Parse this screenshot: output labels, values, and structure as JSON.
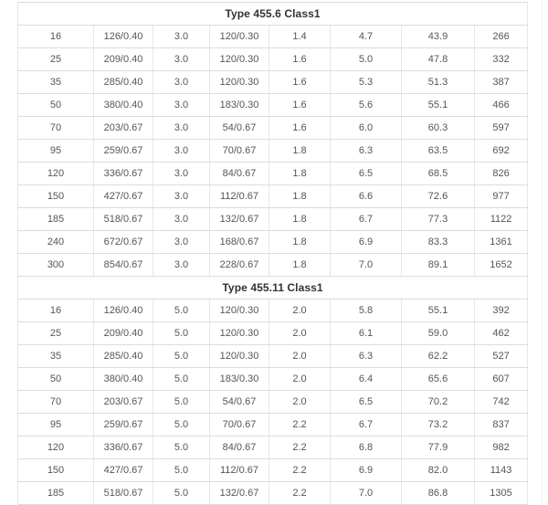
{
  "colors": {
    "background": "#ffffff",
    "border_horizontal": "#dcdcdc",
    "border_vertical": "#e6e6e6",
    "cell_text": "#555555",
    "section_title_text": "#333333"
  },
  "table": {
    "columns": 8,
    "sections": [
      {
        "title": "Type 455.6 Class1",
        "rows": [
          [
            "16",
            "126/0.40",
            "3.0",
            "120/0.30",
            "1.4",
            "4.7",
            "43.9",
            "266"
          ],
          [
            "25",
            "209/0.40",
            "3.0",
            "120/0.30",
            "1.6",
            "5.0",
            "47.8",
            "332"
          ],
          [
            "35",
            "285/0.40",
            "3.0",
            "120/0.30",
            "1.6",
            "5.3",
            "51.3",
            "387"
          ],
          [
            "50",
            "380/0.40",
            "3.0",
            "183/0.30",
            "1.6",
            "5.6",
            "55.1",
            "466"
          ],
          [
            "70",
            "203/0.67",
            "3.0",
            "54/0.67",
            "1.6",
            "6.0",
            "60.3",
            "597"
          ],
          [
            "95",
            "259/0.67",
            "3.0",
            "70/0.67",
            "1.8",
            "6.3",
            "63.5",
            "692"
          ],
          [
            "120",
            "336/0.67",
            "3.0",
            "84/0.67",
            "1.8",
            "6.5",
            "68.5",
            "826"
          ],
          [
            "150",
            "427/0.67",
            "3.0",
            "112/0.67",
            "1.8",
            "6.6",
            "72.6",
            "977"
          ],
          [
            "185",
            "518/0.67",
            "3.0",
            "132/0.67",
            "1.8",
            "6.7",
            "77.3",
            "1122"
          ],
          [
            "240",
            "672/0.67",
            "3.0",
            "168/0.67",
            "1.8",
            "6.9",
            "83.3",
            "1361"
          ],
          [
            "300",
            "854/0.67",
            "3.0",
            "228/0.67",
            "1.8",
            "7.0",
            "89.1",
            "1652"
          ]
        ]
      },
      {
        "title": "Type 455.11 Class1",
        "rows": [
          [
            "16",
            "126/0.40",
            "5.0",
            "120/0.30",
            "2.0",
            "5.8",
            "55.1",
            "392"
          ],
          [
            "25",
            "209/0.40",
            "5.0",
            "120/0.30",
            "2.0",
            "6.1",
            "59.0",
            "462"
          ],
          [
            "35",
            "285/0.40",
            "5.0",
            "120/0.30",
            "2.0",
            "6.3",
            "62.2",
            "527"
          ],
          [
            "50",
            "380/0.40",
            "5.0",
            "183/0.30",
            "2.0",
            "6.4",
            "65.6",
            "607"
          ],
          [
            "70",
            "203/0.67",
            "5.0",
            "54/0.67",
            "2.0",
            "6.5",
            "70.2",
            "742"
          ],
          [
            "95",
            "259/0.67",
            "5.0",
            "70/0.67",
            "2.2",
            "6.7",
            "73.2",
            "837"
          ],
          [
            "120",
            "336/0.67",
            "5.0",
            "84/0.67",
            "2.2",
            "6.8",
            "77.9",
            "982"
          ],
          [
            "150",
            "427/0.67",
            "5.0",
            "112/0.67",
            "2.2",
            "6.9",
            "82.0",
            "1143"
          ],
          [
            "185",
            "518/0.67",
            "5.0",
            "132/0.67",
            "2.2",
            "7.0",
            "86.8",
            "1305"
          ]
        ]
      }
    ]
  }
}
